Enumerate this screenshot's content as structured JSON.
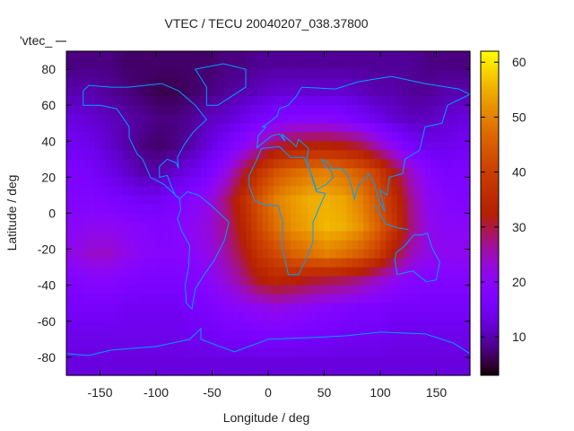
{
  "chart_data": {
    "type": "heatmap",
    "title": "VTEC / TECU 20040207_038.37800",
    "xlabel": "Longitude / deg",
    "ylabel": "Latitude / deg",
    "key_label": "'vtec_",
    "xlim": [
      -180,
      180
    ],
    "ylim": [
      -90,
      90
    ],
    "xticks": [
      -150,
      -100,
      -50,
      0,
      50,
      100,
      150
    ],
    "yticks": [
      -80,
      -60,
      -40,
      -20,
      0,
      20,
      40,
      60,
      80
    ],
    "colorbar": {
      "range": [
        3,
        62
      ],
      "ticks": [
        10,
        20,
        30,
        40,
        50,
        60
      ],
      "palette": "black-blue-purple-red-orange-yellow"
    },
    "coastline_color": "#00a0ff",
    "grid_lon_centers": [
      -172.5,
      -157.5,
      -142.5,
      -127.5,
      -112.5,
      -97.5,
      -82.5,
      -67.5,
      -52.5,
      -37.5,
      -22.5,
      -7.5,
      7.5,
      22.5,
      37.5,
      52.5,
      67.5,
      82.5,
      97.5,
      112.5,
      127.5,
      142.5,
      157.5,
      172.5
    ],
    "grid_lat_centers": [
      82.5,
      67.5,
      52.5,
      37.5,
      22.5,
      7.5,
      -7.5,
      -22.5,
      -37.5,
      -52.5,
      -67.5,
      -82.5
    ],
    "values": [
      [
        8,
        8,
        8,
        7,
        7,
        7,
        7,
        7,
        7,
        8,
        8,
        9,
        9,
        9,
        9,
        9,
        9,
        9,
        9,
        9,
        9,
        8,
        8,
        8
      ],
      [
        10,
        10,
        9,
        8,
        7,
        6,
        6,
        7,
        8,
        9,
        10,
        11,
        12,
        12,
        12,
        12,
        12,
        11,
        10,
        10,
        9,
        9,
        10,
        10
      ],
      [
        13,
        12,
        11,
        10,
        9,
        8,
        8,
        9,
        11,
        12,
        14,
        16,
        18,
        19,
        19,
        19,
        18,
        16,
        14,
        12,
        11,
        11,
        12,
        13
      ],
      [
        15,
        14,
        12,
        10,
        8,
        7,
        8,
        10,
        13,
        16,
        20,
        25,
        30,
        32,
        33,
        33,
        32,
        30,
        25,
        20,
        16,
        14,
        14,
        15
      ],
      [
        17,
        16,
        14,
        12,
        10,
        10,
        12,
        14,
        17,
        22,
        30,
        38,
        44,
        47,
        49,
        50,
        48,
        45,
        40,
        32,
        24,
        19,
        17,
        17
      ],
      [
        18,
        18,
        17,
        16,
        15,
        15,
        17,
        19,
        22,
        28,
        36,
        44,
        50,
        53,
        55,
        55,
        54,
        50,
        44,
        36,
        27,
        21,
        19,
        18
      ],
      [
        20,
        21,
        21,
        20,
        19,
        18,
        19,
        21,
        23,
        27,
        34,
        42,
        48,
        52,
        54,
        56,
        55,
        52,
        46,
        38,
        28,
        22,
        20,
        20
      ],
      [
        22,
        24,
        24,
        22,
        20,
        19,
        19,
        20,
        22,
        26,
        31,
        38,
        42,
        46,
        48,
        50,
        48,
        45,
        40,
        32,
        25,
        22,
        21,
        21
      ],
      [
        18,
        19,
        19,
        18,
        17,
        17,
        17,
        18,
        20,
        23,
        27,
        32,
        34,
        33,
        31,
        30,
        29,
        27,
        24,
        21,
        19,
        18,
        18,
        18
      ],
      [
        16,
        16,
        16,
        15,
        15,
        15,
        15,
        16,
        17,
        19,
        20,
        21,
        22,
        21,
        20,
        19,
        18,
        17,
        17,
        16,
        16,
        16,
        16,
        16
      ],
      [
        14,
        14,
        14,
        14,
        14,
        14,
        14,
        15,
        15,
        16,
        16,
        17,
        17,
        17,
        16,
        16,
        15,
        15,
        15,
        14,
        14,
        14,
        14,
        14
      ],
      [
        13,
        13,
        13,
        13,
        13,
        13,
        13,
        13,
        13,
        13,
        13,
        13,
        13,
        13,
        13,
        13,
        13,
        13,
        13,
        13,
        13,
        13,
        13,
        13
      ]
    ]
  }
}
